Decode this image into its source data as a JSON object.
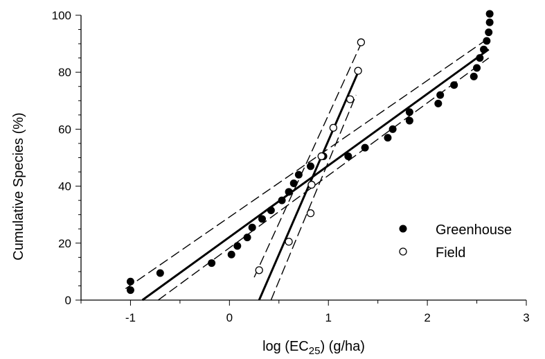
{
  "chart_data": {
    "type": "scatter",
    "xlabel": "log (EC",
    "xlabel_sub": "25",
    "xlabel_suffix": ") (g/ha)",
    "ylabel": "Cumulative Species (%)",
    "xlim": [
      -1.5,
      3
    ],
    "ylim": [
      0,
      100
    ],
    "xticks": [
      -1,
      0,
      1,
      2,
      3
    ],
    "yticks": [
      0,
      20,
      40,
      60,
      80,
      100
    ],
    "grid": false,
    "legend_position": "right-middle",
    "series": [
      {
        "name": "Greenhouse",
        "marker": "filled-circle",
        "color": "#000000",
        "points": [
          {
            "x": -1.0,
            "y": 3.5
          },
          {
            "x": -1.0,
            "y": 6.5
          },
          {
            "x": -0.7,
            "y": 9.5
          },
          {
            "x": -0.18,
            "y": 13
          },
          {
            "x": 0.02,
            "y": 16
          },
          {
            "x": 0.08,
            "y": 19
          },
          {
            "x": 0.18,
            "y": 22
          },
          {
            "x": 0.23,
            "y": 25.5
          },
          {
            "x": 0.33,
            "y": 28.5
          },
          {
            "x": 0.42,
            "y": 31.5
          },
          {
            "x": 0.53,
            "y": 35
          },
          {
            "x": 0.6,
            "y": 38
          },
          {
            "x": 0.65,
            "y": 41
          },
          {
            "x": 0.7,
            "y": 44
          },
          {
            "x": 0.82,
            "y": 47
          },
          {
            "x": 0.95,
            "y": 50.5
          },
          {
            "x": 1.2,
            "y": 50.5
          },
          {
            "x": 1.37,
            "y": 53.5
          },
          {
            "x": 1.6,
            "y": 57
          },
          {
            "x": 1.65,
            "y": 60
          },
          {
            "x": 1.82,
            "y": 63
          },
          {
            "x": 1.82,
            "y": 66
          },
          {
            "x": 2.11,
            "y": 69
          },
          {
            "x": 2.13,
            "y": 72
          },
          {
            "x": 2.27,
            "y": 75.5
          },
          {
            "x": 2.47,
            "y": 78.5
          },
          {
            "x": 2.5,
            "y": 81.5
          },
          {
            "x": 2.53,
            "y": 85
          },
          {
            "x": 2.57,
            "y": 88
          },
          {
            "x": 2.6,
            "y": 91
          },
          {
            "x": 2.62,
            "y": 94
          },
          {
            "x": 2.63,
            "y": 97.5
          },
          {
            "x": 2.63,
            "y": 100.5
          }
        ],
        "fit": {
          "x": [
            -0.88,
            2.62
          ],
          "y": [
            0,
            88
          ]
        },
        "confidence_band": {
          "upper": {
            "x": [
              -1.05,
              2.58
            ],
            "y": [
              4,
              91
            ]
          },
          "lower": {
            "x": [
              -0.72,
              2.62
            ],
            "y": [
              0,
              85
            ]
          }
        }
      },
      {
        "name": "Field",
        "marker": "open-circle",
        "color": "#000000",
        "points": [
          {
            "x": 0.3,
            "y": 10.5
          },
          {
            "x": 0.6,
            "y": 20.5
          },
          {
            "x": 0.82,
            "y": 30.5
          },
          {
            "x": 0.83,
            "y": 40.5
          },
          {
            "x": 0.93,
            "y": 50.5
          },
          {
            "x": 1.05,
            "y": 60.5
          },
          {
            "x": 1.22,
            "y": 70.5
          },
          {
            "x": 1.3,
            "y": 80.5
          },
          {
            "x": 1.33,
            "y": 90.5
          }
        ],
        "fit": {
          "x": [
            0.3,
            1.3
          ],
          "y": [
            0,
            80
          ]
        },
        "confidence_band": {
          "upper": {
            "x": [
              0.25,
              1.33
            ],
            "y": [
              8,
              90
            ]
          },
          "lower": {
            "x": [
              0.42,
              1.28
            ],
            "y": [
              0,
              72
            ]
          }
        }
      }
    ]
  }
}
